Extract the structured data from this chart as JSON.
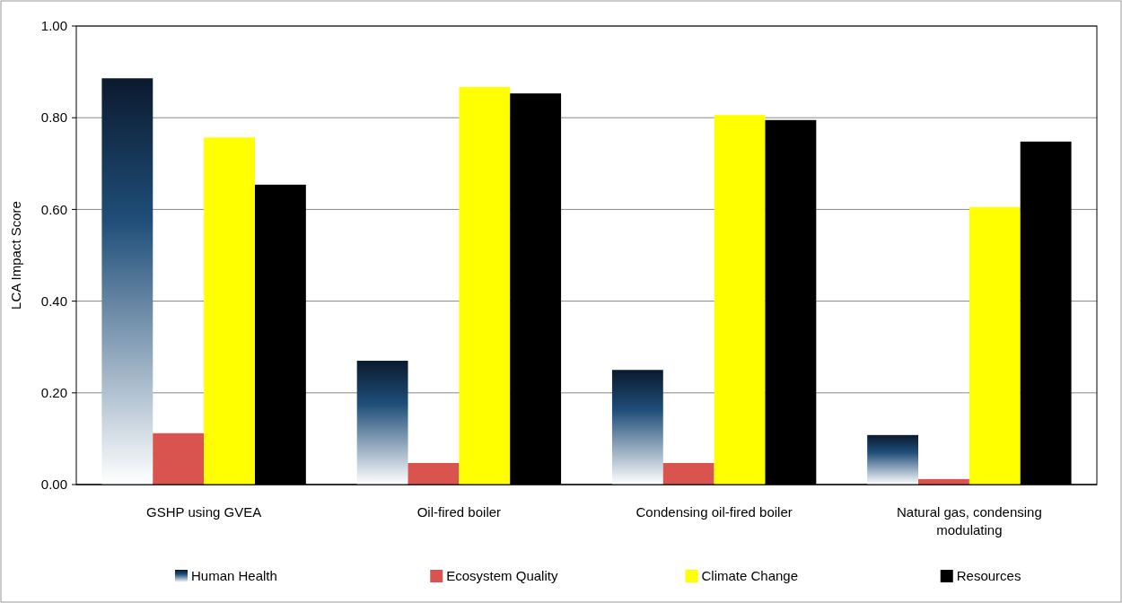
{
  "chart_data": {
    "type": "bar",
    "ylabel": "LCA Impact Score",
    "categories": [
      "GSHP using GVEA",
      "Oil-fired boiler",
      "Condensing oil-fired boiler",
      "Natural gas, condensing modulating"
    ],
    "series": [
      {
        "name": "Human Health",
        "color": "#1f4e79",
        "values": [
          0.886,
          0.27,
          0.25,
          0.108
        ]
      },
      {
        "name": "Ecosystem Quality",
        "color": "#d9534f",
        "values": [
          0.112,
          0.047,
          0.047,
          0.012
        ]
      },
      {
        "name": "Climate Change",
        "color": "#ffff00",
        "values": [
          0.757,
          0.867,
          0.806,
          0.605
        ]
      },
      {
        "name": "Resources",
        "color": "#000000",
        "values": [
          0.654,
          0.853,
          0.795,
          0.748
        ]
      }
    ],
    "ylim": [
      0,
      1
    ],
    "yticks": [
      {
        "value": 0,
        "label": "0.00"
      },
      {
        "value": 0.2,
        "label": "0.20"
      },
      {
        "value": 0.4,
        "label": "0.40"
      },
      {
        "value": 0.6,
        "label": "0.60"
      },
      {
        "value": 0.8,
        "label": "0.80"
      },
      {
        "value": 1,
        "label": "1.00"
      }
    ],
    "grid": "y",
    "legend": "bottom"
  }
}
